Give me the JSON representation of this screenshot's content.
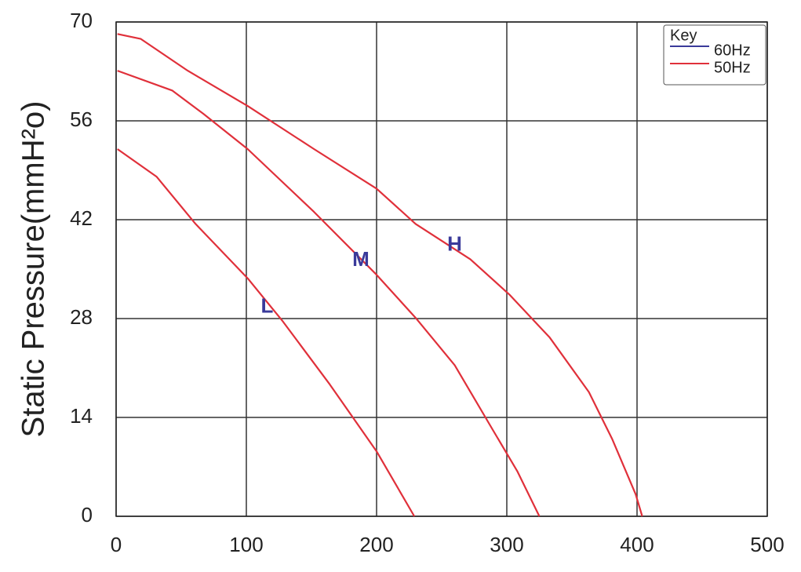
{
  "chart_data": {
    "type": "line",
    "ylabel": "Static Pressure(mmH²o)",
    "xlim": [
      0,
      500
    ],
    "xticks": [
      0,
      100,
      200,
      300,
      400,
      500
    ],
    "ylim": [
      0,
      70
    ],
    "yticks": [
      0,
      14,
      28,
      42,
      56,
      70
    ],
    "grid": true,
    "legend": {
      "title": "Key",
      "position": "upper right",
      "items": [
        {
          "name": "60Hz",
          "color": "#3a3a9a"
        },
        {
          "name": "50Hz",
          "color": "#e0303a"
        }
      ]
    },
    "series": [
      {
        "name": "H",
        "color": "#e0303a",
        "x": [
          1,
          19,
          55,
          101,
          152,
          200,
          230,
          272,
          302,
          333,
          363,
          381,
          399,
          404
        ],
        "values": [
          68.3,
          67.6,
          63.1,
          58.1,
          52,
          46.4,
          41.4,
          36.4,
          31.4,
          25.3,
          17.6,
          10.9,
          3.1,
          0
        ]
      },
      {
        "name": "M",
        "color": "#e0303a",
        "x": [
          1,
          43,
          67,
          101,
          152,
          200,
          230,
          260,
          290,
          308,
          325
        ],
        "values": [
          63.1,
          60.3,
          57,
          52,
          43.1,
          34.2,
          28.1,
          21.4,
          12,
          6.4,
          0
        ]
      },
      {
        "name": "L",
        "color": "#e0303a",
        "x": [
          1,
          31,
          61,
          101,
          128,
          164,
          200,
          229
        ],
        "values": [
          52,
          48.1,
          41.4,
          33.7,
          27.6,
          18.7,
          9.2,
          0
        ]
      }
    ]
  }
}
